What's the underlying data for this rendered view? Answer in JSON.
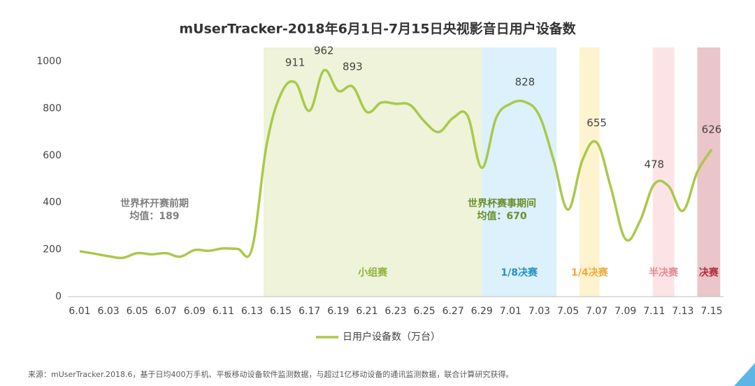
{
  "chart_data": {
    "type": "line",
    "title": "mUserTracker-2018年6月1日-7月15日央视影音日用户设备数",
    "categories": [
      "6.01",
      null,
      "6.03",
      null,
      "6.05",
      null,
      "6.07",
      null,
      "6.09",
      null,
      "6.11",
      null,
      "6.13",
      null,
      "6.15",
      null,
      "6.17",
      null,
      "6.19",
      null,
      "6.21",
      null,
      "6.23",
      null,
      "6.25",
      null,
      "6.27",
      null,
      "6.29",
      null,
      "7.01",
      null,
      "7.03",
      null,
      "7.05",
      null,
      "7.07",
      null,
      "7.09",
      null,
      "7.11",
      null,
      "7.13",
      null,
      "7.15"
    ],
    "series": [
      {
        "name": "日用户设备数（万台）",
        "color": "#a9c94a",
        "values": [
          193,
          183,
          172,
          165,
          185,
          180,
          185,
          170,
          198,
          195,
          205,
          203,
          205,
          640,
          860,
          911,
          790,
          962,
          875,
          893,
          785,
          825,
          820,
          815,
          745,
          700,
          760,
          770,
          548,
          760,
          820,
          828,
          770,
          580,
          370,
          580,
          655,
          460,
          245,
          320,
          478,
          470,
          365,
          530,
          626
        ],
        "value_labels": [
          null,
          null,
          null,
          null,
          null,
          null,
          null,
          null,
          null,
          null,
          null,
          null,
          null,
          null,
          null,
          "911",
          null,
          "962",
          null,
          "893",
          null,
          null,
          null,
          null,
          null,
          null,
          null,
          null,
          null,
          null,
          null,
          "828",
          null,
          null,
          null,
          null,
          "655",
          null,
          null,
          null,
          "478",
          null,
          null,
          null,
          "626"
        ]
      }
    ],
    "ylim": [
      0,
      1000
    ],
    "yticks": [
      0,
      200,
      400,
      600,
      800,
      1000
    ],
    "grid": false,
    "phases": [
      {
        "label": "小组赛",
        "color": "#eef3d9",
        "text_color": "#8db33a"
      },
      {
        "label": "1/8决赛",
        "color": "#dcf1fb",
        "text_color": "#2a8fc8"
      },
      {
        "label": "1/4决赛",
        "color": "#fdf3cf",
        "text_color": "#f2a93b"
      },
      {
        "label": "半决赛",
        "color": "#fbe3e6",
        "text_color": "#e48a95"
      },
      {
        "label": "决赛",
        "color": "#eac5c9",
        "text_color": "#b22c36"
      }
    ],
    "annotations": [
      {
        "lines": [
          "世界杯开赛前期",
          "均值：189"
        ],
        "color": "#7f7f7f"
      },
      {
        "lines": [
          "世界杯赛事期间",
          "均值：670"
        ],
        "color": "#6a8f2a"
      }
    ],
    "source": "来源：mUserTracker.2018.6，基于日均400万手机、平板移动设备软件监测数据，与超过1亿移动设备的通讯监测数据，联合计算研究获得。"
  }
}
